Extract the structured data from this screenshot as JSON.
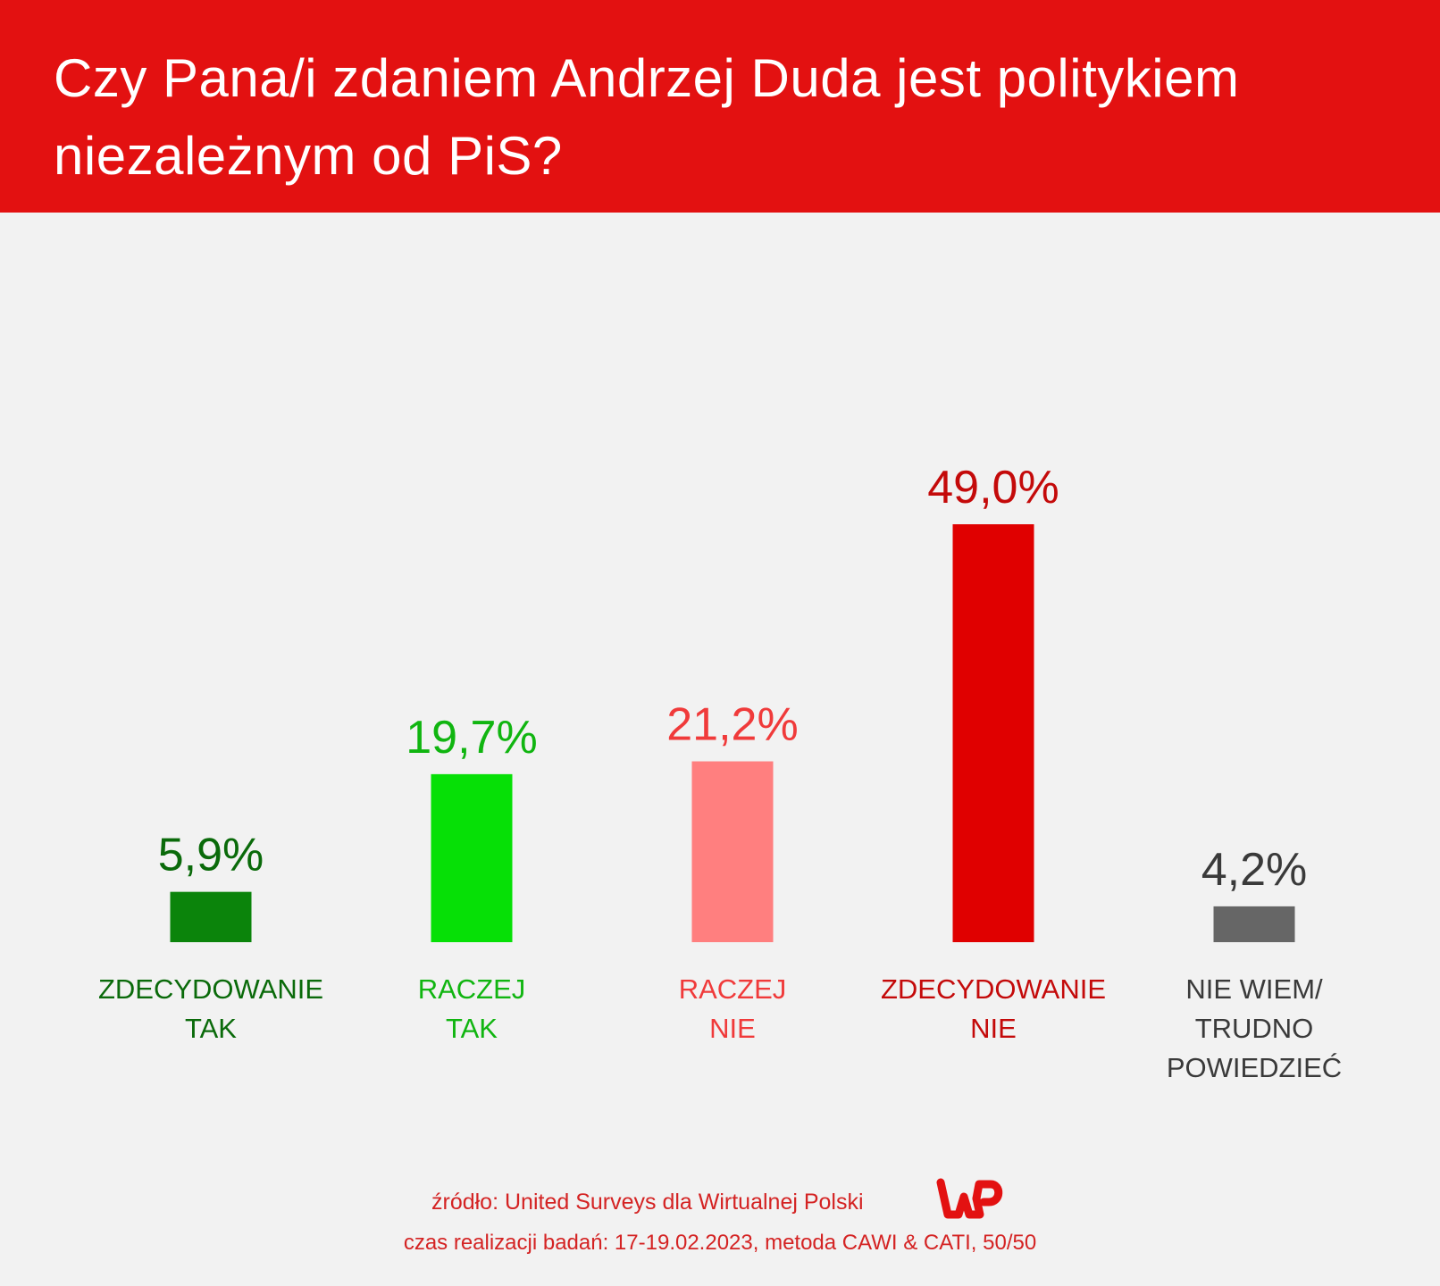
{
  "header": {
    "title": "Czy Pana/i zdaniem Andrzej Duda jest politykiem niezależnym od PiS?"
  },
  "chart_data": {
    "type": "bar",
    "title": "Czy Pana/i zdaniem Andrzej Duda jest politykiem niezależnym od PiS?",
    "xlabel": "",
    "ylabel": "",
    "grid": false,
    "legend": "none",
    "ylim": [
      0,
      100
    ],
    "categories": [
      [
        "ZDECYDOWANIE",
        "TAK"
      ],
      [
        "RACZEJ",
        "TAK"
      ],
      [
        "RACZEJ",
        "NIE"
      ],
      [
        "ZDECYDOWANIE",
        "NIE"
      ],
      [
        "NIE WIEM/",
        "TRUDNO",
        "POWIEDZIEĆ"
      ]
    ],
    "values": [
      5.9,
      19.7,
      21.2,
      49.0,
      4.2
    ],
    "value_labels": [
      "5,9%",
      "19,7%",
      "21,2%",
      "49,0%",
      "4,2%"
    ],
    "bar_colors": [
      "#0b840b",
      "#06e006",
      "#ff7f7f",
      "#e00000",
      "#666666"
    ],
    "label_colors": [
      "#0a6a0a",
      "#10b510",
      "#f03a3a",
      "#c40a0a",
      "#3a3a3a"
    ]
  },
  "footer": {
    "source": "źródło: United Surveys dla Wirtualnej Polski",
    "methodology": "czas realizacji badań: 17-19.02.2023, metoda CAWI & CATI, 50/50",
    "logo_text": "WP",
    "logo_color": "#e31111"
  },
  "colors": {
    "header_background": "#e31111",
    "page_background": "#f2f2f2",
    "title_text": "#ffffff",
    "footer_text": "#d42323"
  }
}
